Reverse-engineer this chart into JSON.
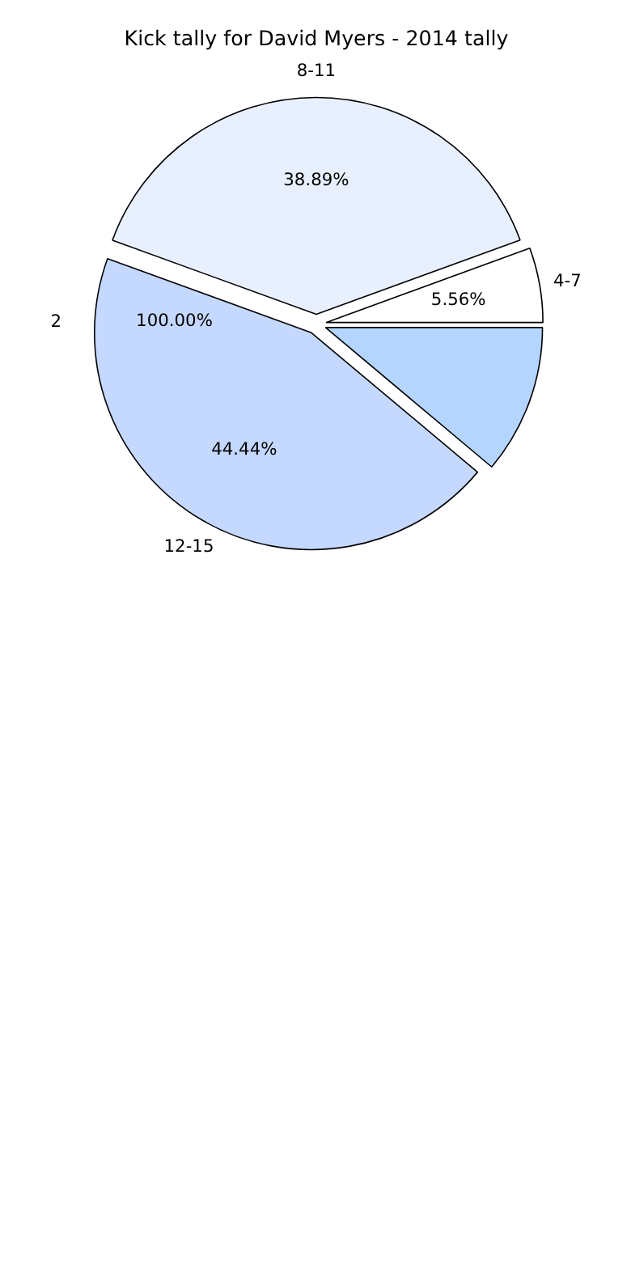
{
  "chart_data": {
    "type": "pie",
    "title": "Kick tally for David Myers - 2014 tally",
    "categories": [
      "4-7",
      "8-11",
      "12-15",
      null
    ],
    "annotations": [
      "2",
      "100.00%"
    ],
    "values": [
      5.56,
      38.89,
      44.44,
      11.11
    ],
    "value_labels": [
      "5.56%",
      "38.89%",
      "44.44%",
      null
    ],
    "colors": [
      "#ffffff",
      "#e8f0ff",
      "#c5d8ff",
      "#b3d5ff"
    ]
  }
}
